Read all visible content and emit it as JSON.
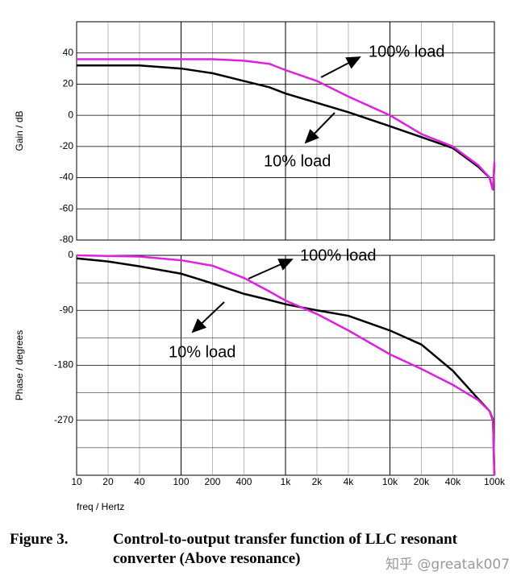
{
  "chart_data": [
    {
      "type": "line",
      "ylabel": "Gain / dB",
      "log_x": true,
      "xlim": [
        10,
        100000
      ],
      "ylim": [
        -80,
        60
      ],
      "yticks": [
        -80,
        -60,
        -40,
        -20,
        0,
        20,
        40
      ],
      "grid": true,
      "annotations": [
        "100% load",
        "10% load"
      ],
      "x": [
        10,
        20,
        40,
        100,
        200,
        400,
        700,
        1000,
        2000,
        4000,
        10000,
        20000,
        40000,
        70000,
        90000,
        97000,
        100000
      ],
      "series": [
        {
          "color": "#000000",
          "values": [
            32,
            32,
            32,
            30,
            27,
            22,
            18,
            14,
            8,
            2,
            -7,
            -14,
            -21,
            -33,
            -40,
            -48,
            -32
          ]
        },
        {
          "color": "#e020e0",
          "values": [
            36,
            36,
            36,
            36,
            36,
            35,
            33,
            29,
            22,
            12,
            0,
            -12,
            -20,
            -32,
            -40,
            -48,
            -30
          ]
        }
      ]
    },
    {
      "type": "line",
      "ylabel": "Phase / degrees",
      "xlabel": "freq / Hertz",
      "log_x": true,
      "xlim": [
        10,
        100000
      ],
      "ylim": [
        -360,
        0
      ],
      "yticks": [
        -270,
        -180,
        -90,
        0
      ],
      "grid": true,
      "xticks": [
        10,
        20,
        40,
        100,
        200,
        400,
        {
          "value": 1000,
          "label": "1k"
        },
        {
          "value": 2000,
          "label": "2k"
        },
        {
          "value": 4000,
          "label": "4k"
        },
        {
          "value": 10000,
          "label": "10k"
        },
        {
          "value": 20000,
          "label": "20k"
        },
        {
          "value": 40000,
          "label": "40k"
        },
        {
          "value": 100000,
          "label": "100k"
        }
      ],
      "annotations": [
        "100% load",
        "10% load"
      ],
      "x": [
        10,
        20,
        40,
        100,
        200,
        400,
        700,
        1000,
        2000,
        4000,
        10000,
        20000,
        40000,
        70000,
        90000,
        97000,
        100000
      ],
      "series": [
        {
          "color": "#000000",
          "values": [
            -5,
            -10,
            -18,
            -30,
            -46,
            -63,
            -73,
            -80,
            -90,
            -99,
            -123,
            -146,
            -189,
            -235,
            -255,
            -270,
            -360
          ]
        },
        {
          "color": "#e020e0",
          "values": [
            0,
            -1,
            -2,
            -8,
            -17,
            -37,
            -59,
            -74,
            -96,
            -123,
            -162,
            -186,
            -212,
            -237,
            -255,
            -268,
            -360
          ]
        }
      ]
    }
  ],
  "caption": {
    "label": "Figure 3.",
    "text": "Control-to-output transfer function of LLC resonant converter (Above resonance)"
  },
  "watermark": "知乎 @greatak007"
}
